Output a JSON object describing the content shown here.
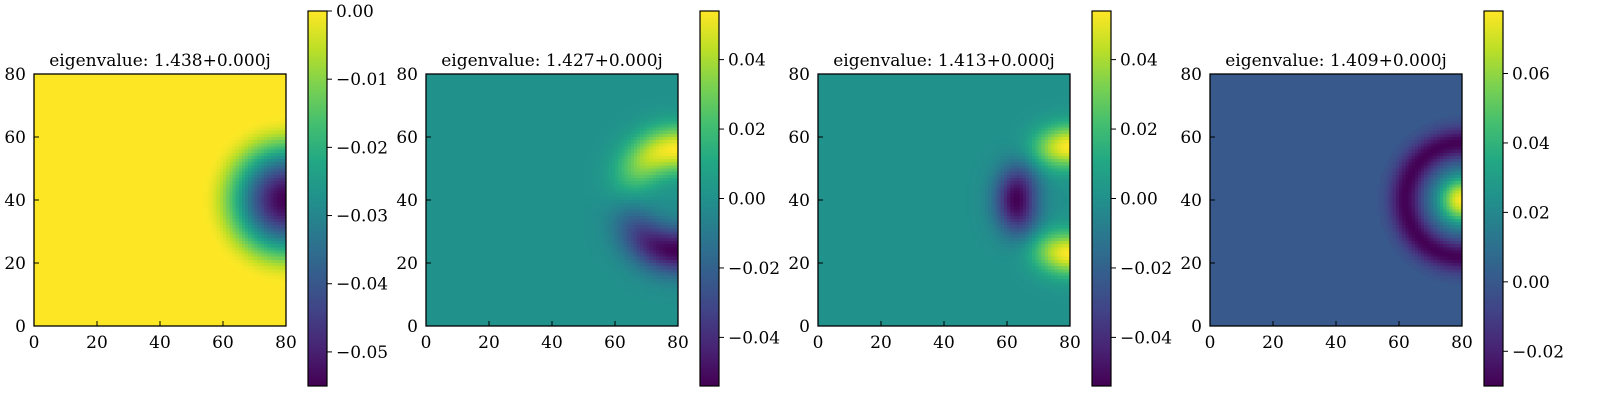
{
  "colors": {
    "viridis": [
      "#440154",
      "#482475",
      "#414487",
      "#355f8d",
      "#2a788e",
      "#21918c",
      "#22a884",
      "#44bf70",
      "#7ad151",
      "#bddf26",
      "#fde725"
    ],
    "frame": "#000000"
  },
  "chart_data": [
    {
      "type": "heatmap",
      "title": "eigenvalue: 1.438+0.000j",
      "xlim": [
        0,
        80
      ],
      "ylim": [
        0,
        80
      ],
      "xticks": [
        "0",
        "20",
        "40",
        "60",
        "80"
      ],
      "yticks": [
        "0",
        "20",
        "40",
        "60",
        "80"
      ],
      "colorbar": {
        "range": [
          -0.055,
          0.0
        ],
        "ticks": [
          {
            "v": 0.0,
            "label": "0.00"
          },
          {
            "v": -0.01,
            "label": "−0.01"
          },
          {
            "v": -0.02,
            "label": "−0.02"
          },
          {
            "v": -0.03,
            "label": "−0.03"
          },
          {
            "v": -0.04,
            "label": "−0.04"
          },
          {
            "v": -0.05,
            "label": "−0.05"
          }
        ]
      },
      "field": {
        "mode": 0,
        "base": 0.0,
        "amplitude": -0.055,
        "center": [
          80,
          40
        ],
        "radius": 27
      }
    },
    {
      "type": "heatmap",
      "title": "eigenvalue: 1.427+0.000j",
      "xlim": [
        0,
        80
      ],
      "ylim": [
        0,
        80
      ],
      "xticks": [
        "0",
        "20",
        "40",
        "60",
        "80"
      ],
      "yticks": [
        "0",
        "20",
        "40",
        "60",
        "80"
      ],
      "colorbar": {
        "range": [
          -0.054,
          0.054
        ],
        "ticks": [
          {
            "v": 0.04,
            "label": "0.04"
          },
          {
            "v": 0.02,
            "label": "0.02"
          },
          {
            "v": 0.0,
            "label": "0.00"
          },
          {
            "v": -0.02,
            "label": "−0.02"
          },
          {
            "v": -0.04,
            "label": "−0.04"
          }
        ]
      },
      "field": {
        "mode": 1,
        "base": 0.0,
        "amplitude": 0.054,
        "center": [
          80,
          40
        ],
        "radius": 27
      }
    },
    {
      "type": "heatmap",
      "title": "eigenvalue: 1.413+0.000j",
      "xlim": [
        0,
        80
      ],
      "ylim": [
        0,
        80
      ],
      "xticks": [
        "0",
        "20",
        "40",
        "60",
        "80"
      ],
      "yticks": [
        "0",
        "20",
        "40",
        "60",
        "80"
      ],
      "colorbar": {
        "range": [
          -0.054,
          0.054
        ],
        "ticks": [
          {
            "v": 0.04,
            "label": "0.04"
          },
          {
            "v": 0.02,
            "label": "0.02"
          },
          {
            "v": 0.0,
            "label": "0.00"
          },
          {
            "v": -0.02,
            "label": "−0.02"
          },
          {
            "v": -0.04,
            "label": "−0.04"
          }
        ]
      },
      "field": {
        "mode": 2,
        "base": 0.0,
        "amplitude": 0.054,
        "center": [
          80,
          40
        ],
        "radius": 27
      }
    },
    {
      "type": "heatmap",
      "title": "eigenvalue: 1.409+0.000j",
      "xlim": [
        0,
        80
      ],
      "ylim": [
        0,
        80
      ],
      "xticks": [
        "0",
        "20",
        "40",
        "60",
        "80"
      ],
      "yticks": [
        "0",
        "20",
        "40",
        "60",
        "80"
      ],
      "colorbar": {
        "range": [
          -0.03,
          0.078
        ],
        "ticks": [
          {
            "v": 0.06,
            "label": "0.06"
          },
          {
            "v": 0.04,
            "label": "0.04"
          },
          {
            "v": 0.02,
            "label": "0.02"
          },
          {
            "v": 0.0,
            "label": "0.00"
          },
          {
            "v": -0.02,
            "label": "−0.02"
          }
        ]
      },
      "field": {
        "mode": 3,
        "base": 0.0,
        "amplitude": 0.078,
        "center": [
          80,
          40
        ],
        "radius": 27
      }
    }
  ]
}
